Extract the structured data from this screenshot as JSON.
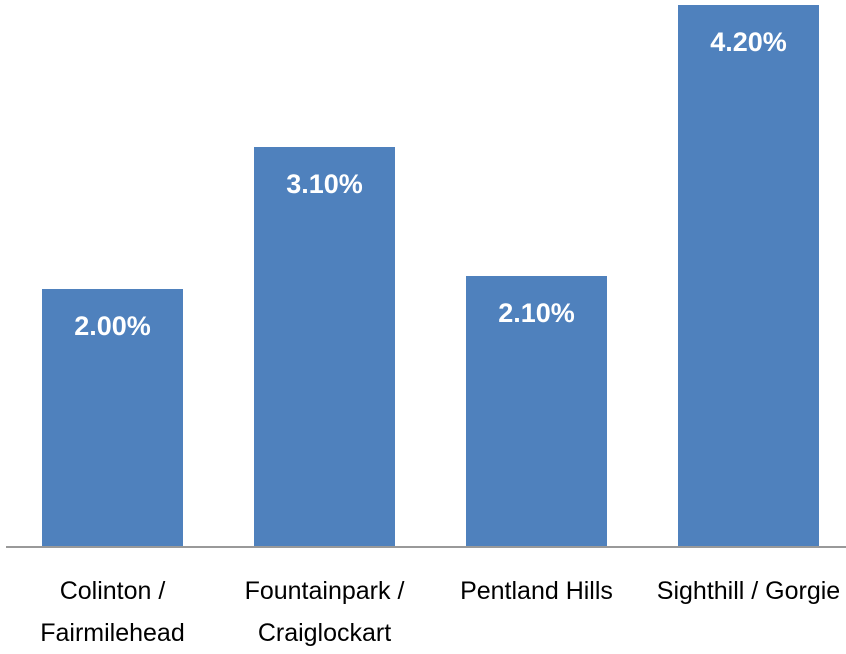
{
  "chart_data": {
    "type": "bar",
    "categories": [
      "Colinton / Fairmilehead",
      "Fountainpark / Craiglockart",
      "Pentland Hills",
      "Sighthill / Gorgie"
    ],
    "values": [
      2.0,
      3.1,
      2.1,
      4.2
    ],
    "value_labels": [
      "2.00%",
      "3.10%",
      "2.10%",
      "4.20%"
    ],
    "color": "#4f81bd",
    "ylim": [
      0,
      4.2
    ]
  }
}
